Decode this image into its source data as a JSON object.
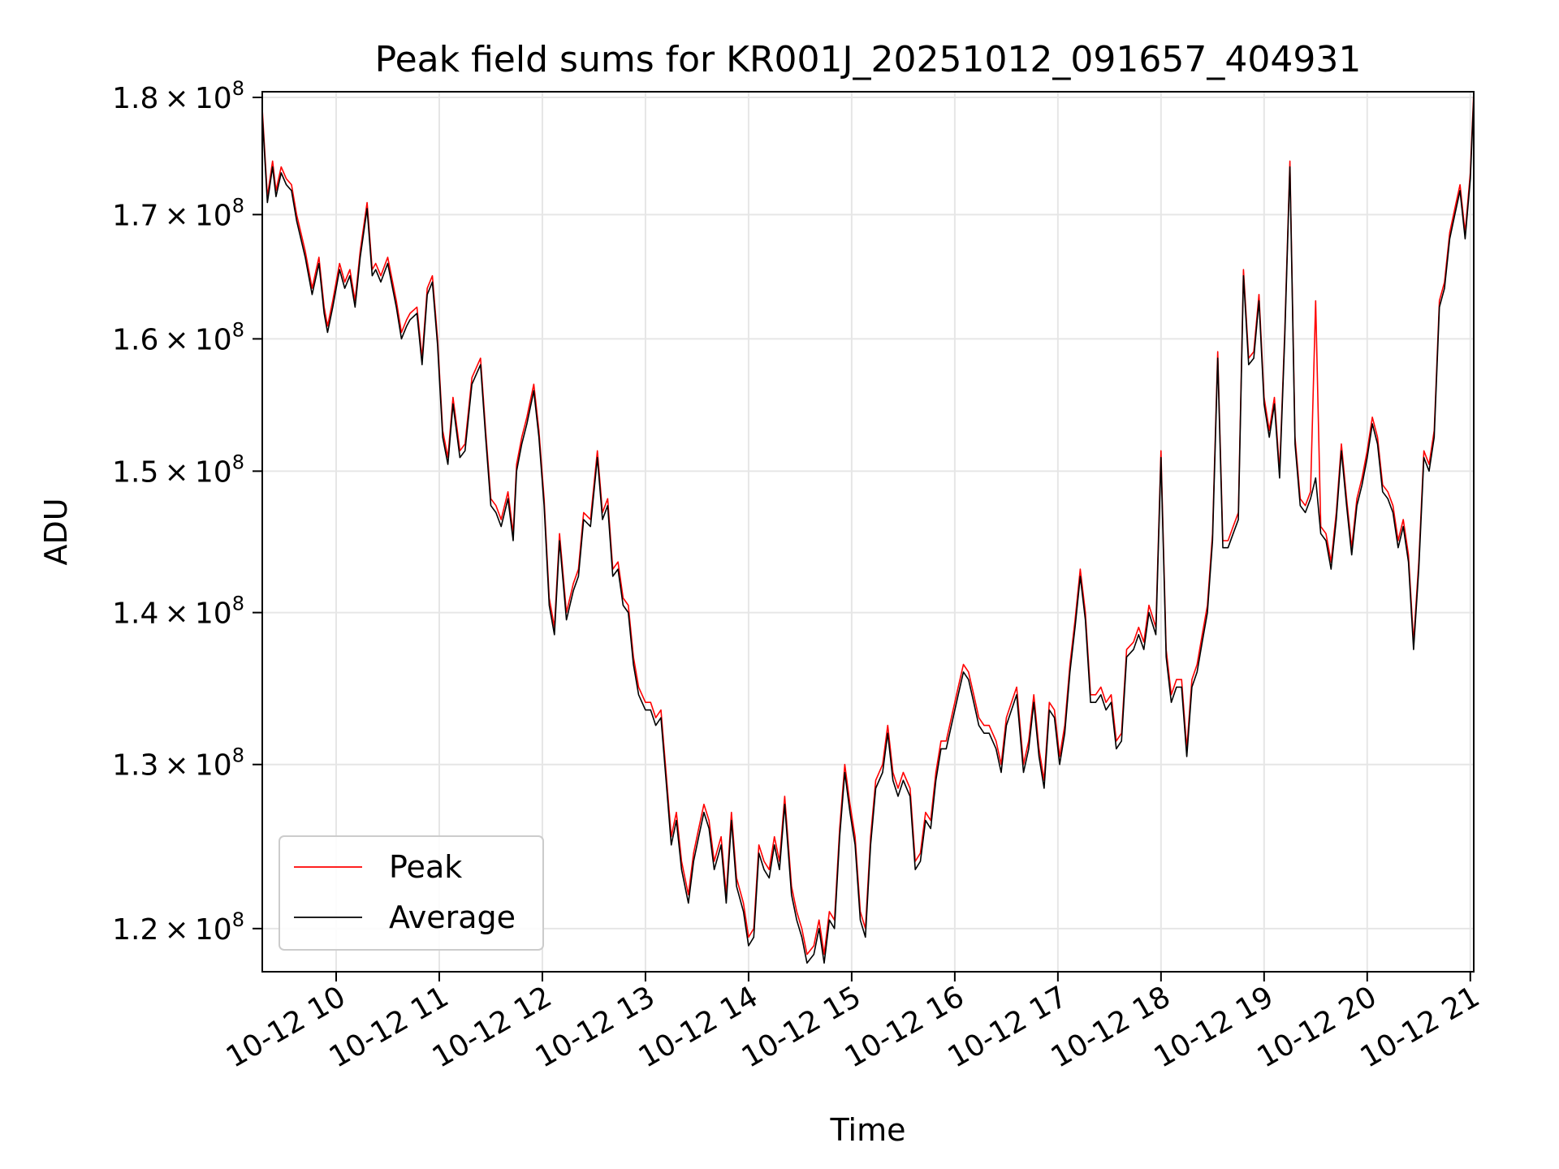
{
  "chart_data": {
    "type": "line",
    "title": "Peak field sums for KR001J_20251012_091657_404931",
    "xlabel": "Time",
    "ylabel": "ADU",
    "y_scale": "log",
    "xlim": [
      "2025-10-12 09:17",
      "2025-10-12 21:02"
    ],
    "ylim": [
      117500000,
      180500000
    ],
    "grid": true,
    "legend_position": "lower-left",
    "x_ticks": [
      {
        "value": "2025-10-12 10:00",
        "label": "10-12 10"
      },
      {
        "value": "2025-10-12 11:00",
        "label": "10-12 11"
      },
      {
        "value": "2025-10-12 12:00",
        "label": "10-12 12"
      },
      {
        "value": "2025-10-12 13:00",
        "label": "10-12 13"
      },
      {
        "value": "2025-10-12 14:00",
        "label": "10-12 14"
      },
      {
        "value": "2025-10-12 15:00",
        "label": "10-12 15"
      },
      {
        "value": "2025-10-12 16:00",
        "label": "10-12 16"
      },
      {
        "value": "2025-10-12 17:00",
        "label": "10-12 17"
      },
      {
        "value": "2025-10-12 18:00",
        "label": "10-12 18"
      },
      {
        "value": "2025-10-12 19:00",
        "label": "10-12 19"
      },
      {
        "value": "2025-10-12 20:00",
        "label": "10-12 20"
      },
      {
        "value": "2025-10-12 21:00",
        "label": "10-12 21"
      }
    ],
    "y_ticks": [
      {
        "value": 120000000,
        "mantissa": "1.2",
        "base": "10",
        "exponent": "8"
      },
      {
        "value": 130000000,
        "mantissa": "1.3",
        "base": "10",
        "exponent": "8"
      },
      {
        "value": 140000000,
        "mantissa": "1.4",
        "base": "10",
        "exponent": "8"
      },
      {
        "value": 150000000,
        "mantissa": "1.5",
        "base": "10",
        "exponent": "8"
      },
      {
        "value": 160000000,
        "mantissa": "1.6",
        "base": "10",
        "exponent": "8"
      },
      {
        "value": 170000000,
        "mantissa": "1.7",
        "base": "10",
        "exponent": "8"
      },
      {
        "value": 180000000,
        "mantissa": "1.8",
        "base": "10",
        "exponent": "8"
      }
    ],
    "x": [
      "2025-10-12 09:17",
      "2025-10-12 09:20",
      "2025-10-12 09:23",
      "2025-10-12 09:25",
      "2025-10-12 09:28",
      "2025-10-12 09:31",
      "2025-10-12 09:34",
      "2025-10-12 09:37",
      "2025-10-12 09:42",
      "2025-10-12 09:46",
      "2025-10-12 09:50",
      "2025-10-12 09:53",
      "2025-10-12 09:55",
      "2025-10-12 09:58",
      "2025-10-12 10:02",
      "2025-10-12 10:05",
      "2025-10-12 10:08",
      "2025-10-12 10:11",
      "2025-10-12 10:14",
      "2025-10-12 10:18",
      "2025-10-12 10:21",
      "2025-10-12 10:23",
      "2025-10-12 10:26",
      "2025-10-12 10:30",
      "2025-10-12 10:35",
      "2025-10-12 10:38",
      "2025-10-12 10:41",
      "2025-10-12 10:43",
      "2025-10-12 10:47",
      "2025-10-12 10:50",
      "2025-10-12 10:53",
      "2025-10-12 10:56",
      "2025-10-12 10:59",
      "2025-10-12 11:02",
      "2025-10-12 11:05",
      "2025-10-12 11:08",
      "2025-10-12 11:12",
      "2025-10-12 11:15",
      "2025-10-12 11:19",
      "2025-10-12 11:24",
      "2025-10-12 11:27",
      "2025-10-12 11:30",
      "2025-10-12 11:33",
      "2025-10-12 11:36",
      "2025-10-12 11:40",
      "2025-10-12 11:43",
      "2025-10-12 11:45",
      "2025-10-12 11:48",
      "2025-10-12 11:51",
      "2025-10-12 11:55",
      "2025-10-12 11:58",
      "2025-10-12 12:01",
      "2025-10-12 12:04",
      "2025-10-12 12:07",
      "2025-10-12 12:10",
      "2025-10-12 12:14",
      "2025-10-12 12:18",
      "2025-10-12 12:21",
      "2025-10-12 12:24",
      "2025-10-12 12:28",
      "2025-10-12 12:32",
      "2025-10-12 12:35",
      "2025-10-12 12:38",
      "2025-10-12 12:41",
      "2025-10-12 12:44",
      "2025-10-12 12:47",
      "2025-10-12 12:50",
      "2025-10-12 12:53",
      "2025-10-12 12:56",
      "2025-10-12 13:00",
      "2025-10-12 13:03",
      "2025-10-12 13:06",
      "2025-10-12 13:09",
      "2025-10-12 13:12",
      "2025-10-12 13:15",
      "2025-10-12 13:18",
      "2025-10-12 13:21",
      "2025-10-12 13:25",
      "2025-10-12 13:28",
      "2025-10-12 13:31",
      "2025-10-12 13:34",
      "2025-10-12 13:37",
      "2025-10-12 13:40",
      "2025-10-12 13:44",
      "2025-10-12 13:47",
      "2025-10-12 13:50",
      "2025-10-12 13:53",
      "2025-10-12 13:57",
      "2025-10-12 14:00",
      "2025-10-12 14:03",
      "2025-10-12 14:06",
      "2025-10-12 14:09",
      "2025-10-12 14:12",
      "2025-10-12 14:15",
      "2025-10-12 14:18",
      "2025-10-12 14:21",
      "2025-10-12 14:25",
      "2025-10-12 14:28",
      "2025-10-12 14:31",
      "2025-10-12 14:34",
      "2025-10-12 14:38",
      "2025-10-12 14:41",
      "2025-10-12 14:44",
      "2025-10-12 14:47",
      "2025-10-12 14:50",
      "2025-10-12 14:53",
      "2025-10-12 14:56",
      "2025-10-12 14:59",
      "2025-10-12 15:02",
      "2025-10-12 15:05",
      "2025-10-12 15:08",
      "2025-10-12 15:11",
      "2025-10-12 15:14",
      "2025-10-12 15:18",
      "2025-10-12 15:21",
      "2025-10-12 15:24",
      "2025-10-12 15:27",
      "2025-10-12 15:30",
      "2025-10-12 15:34",
      "2025-10-12 15:37",
      "2025-10-12 15:40",
      "2025-10-12 15:43",
      "2025-10-12 15:46",
      "2025-10-12 15:49",
      "2025-10-12 15:52",
      "2025-10-12 15:55",
      "2025-10-12 15:59",
      "2025-10-12 16:02",
      "2025-10-12 16:05",
      "2025-10-12 16:08",
      "2025-10-12 16:11",
      "2025-10-12 16:14",
      "2025-10-12 16:17",
      "2025-10-12 16:20",
      "2025-10-12 16:24",
      "2025-10-12 16:27",
      "2025-10-12 16:30",
      "2025-10-12 16:33",
      "2025-10-12 16:36",
      "2025-10-12 16:40",
      "2025-10-12 16:43",
      "2025-10-12 16:46",
      "2025-10-12 16:49",
      "2025-10-12 16:52",
      "2025-10-12 16:55",
      "2025-10-12 16:58",
      "2025-10-12 17:01",
      "2025-10-12 17:04",
      "2025-10-12 17:07",
      "2025-10-12 17:10",
      "2025-10-12 17:13",
      "2025-10-12 17:16",
      "2025-10-12 17:19",
      "2025-10-12 17:22",
      "2025-10-12 17:25",
      "2025-10-12 17:28",
      "2025-10-12 17:31",
      "2025-10-12 17:34",
      "2025-10-12 17:37",
      "2025-10-12 17:40",
      "2025-10-12 17:44",
      "2025-10-12 17:47",
      "2025-10-12 17:50",
      "2025-10-12 17:53",
      "2025-10-12 17:57",
      "2025-10-12 18:00",
      "2025-10-12 18:03",
      "2025-10-12 18:06",
      "2025-10-12 18:09",
      "2025-10-12 18:12",
      "2025-10-12 18:15",
      "2025-10-12 18:18",
      "2025-10-12 18:21",
      "2025-10-12 18:24",
      "2025-10-12 18:27",
      "2025-10-12 18:30",
      "2025-10-12 18:33",
      "2025-10-12 18:36",
      "2025-10-12 18:39",
      "2025-10-12 18:42",
      "2025-10-12 18:45",
      "2025-10-12 18:48",
      "2025-10-12 18:51",
      "2025-10-12 18:54",
      "2025-10-12 18:57",
      "2025-10-12 19:00",
      "2025-10-12 19:03",
      "2025-10-12 19:06",
      "2025-10-12 19:09",
      "2025-10-12 19:12",
      "2025-10-12 19:15",
      "2025-10-12 19:18",
      "2025-10-12 19:21",
      "2025-10-12 19:24",
      "2025-10-12 19:27",
      "2025-10-12 19:30",
      "2025-10-12 19:33",
      "2025-10-12 19:36",
      "2025-10-12 19:39",
      "2025-10-12 19:42",
      "2025-10-12 19:45",
      "2025-10-12 19:48",
      "2025-10-12 19:51",
      "2025-10-12 19:54",
      "2025-10-12 19:57",
      "2025-10-12 20:00",
      "2025-10-12 20:03",
      "2025-10-12 20:06",
      "2025-10-12 20:09",
      "2025-10-12 20:12",
      "2025-10-12 20:15",
      "2025-10-12 20:18",
      "2025-10-12 20:21",
      "2025-10-12 20:24",
      "2025-10-12 20:27",
      "2025-10-12 20:30",
      "2025-10-12 20:33",
      "2025-10-12 20:36",
      "2025-10-12 20:39",
      "2025-10-12 20:42",
      "2025-10-12 20:45",
      "2025-10-12 20:48",
      "2025-10-12 20:51",
      "2025-10-12 20:54",
      "2025-10-12 20:57",
      "2025-10-12 21:00",
      "2025-10-12 21:02"
    ],
    "series": [
      {
        "name": "Peak",
        "color": "#ff0000",
        "values": [
          179000000,
          171500000,
          174500000,
          172000000,
          174000000,
          173000000,
          172500000,
          170000000,
          167000000,
          164000000,
          166500000,
          162500000,
          161000000,
          163000000,
          166000000,
          164500000,
          165500000,
          163000000,
          167000000,
          171000000,
          165500000,
          166000000,
          165000000,
          166500000,
          163000000,
          160500000,
          161500000,
          162000000,
          162500000,
          158500000,
          164000000,
          165000000,
          160000000,
          153000000,
          151000000,
          155500000,
          151500000,
          152000000,
          157000000,
          158500000,
          153000000,
          148000000,
          147500000,
          146500000,
          148500000,
          145500000,
          150500000,
          152500000,
          154000000,
          156500000,
          153000000,
          148000000,
          141000000,
          139000000,
          145500000,
          140000000,
          142000000,
          143000000,
          147000000,
          146500000,
          151500000,
          147000000,
          148000000,
          143000000,
          143500000,
          141000000,
          140500000,
          137000000,
          135000000,
          134000000,
          134000000,
          133000000,
          133500000,
          129500000,
          125500000,
          127000000,
          124000000,
          122000000,
          124500000,
          126000000,
          127500000,
          126500000,
          124000000,
          125500000,
          122000000,
          127000000,
          123000000,
          121500000,
          119500000,
          120000000,
          125000000,
          124000000,
          123500000,
          125500000,
          124000000,
          128000000,
          122500000,
          121000000,
          120000000,
          118500000,
          119000000,
          120500000,
          118500000,
          121000000,
          120500000,
          126000000,
          130000000,
          127500000,
          125500000,
          121000000,
          120000000,
          125500000,
          129000000,
          130000000,
          132500000,
          129500000,
          128500000,
          129500000,
          128500000,
          124000000,
          124500000,
          127000000,
          126500000,
          129500000,
          131500000,
          131500000,
          133500000,
          135000000,
          136500000,
          136000000,
          134500000,
          133000000,
          132500000,
          132500000,
          131500000,
          130000000,
          133000000,
          134000000,
          135000000,
          130000000,
          131500000,
          134500000,
          131000000,
          129000000,
          134000000,
          133500000,
          130500000,
          132500000,
          136500000,
          139500000,
          143000000,
          140000000,
          134500000,
          134500000,
          135000000,
          134000000,
          134500000,
          131500000,
          132000000,
          137500000,
          138000000,
          139000000,
          138000000,
          140500000,
          139000000,
          151500000,
          137500000,
          134500000,
          135500000,
          135500000,
          131000000,
          135500000,
          136500000,
          138500000,
          140500000,
          145500000,
          159000000,
          145000000,
          145000000,
          146000000,
          147000000,
          165500000,
          158500000,
          159000000,
          163500000,
          155500000,
          153000000,
          155500000,
          150000000,
          160500000,
          174500000,
          152500000,
          148000000,
          147500000,
          148500000,
          163000000,
          146000000,
          145500000,
          143500000,
          147000000,
          152000000,
          148000000,
          144500000,
          148000000,
          149500000,
          151500000,
          154000000,
          152500000,
          149000000,
          148500000,
          147500000,
          145000000,
          146500000,
          144000000,
          138000000,
          143500000,
          151500000,
          150500000,
          153000000,
          163000000,
          164500000,
          168500000,
          170500000,
          172500000,
          168500000,
          173500000,
          180500000
        ]
      },
      {
        "name": "Average",
        "color": "#000000",
        "values": [
          178500000,
          171000000,
          174000000,
          171500000,
          173500000,
          172500000,
          172000000,
          169500000,
          166500000,
          163500000,
          166000000,
          162000000,
          160500000,
          162500000,
          165500000,
          164000000,
          165000000,
          162500000,
          166500000,
          170500000,
          165000000,
          165500000,
          164500000,
          166000000,
          162500000,
          160000000,
          161000000,
          161500000,
          162000000,
          158000000,
          163500000,
          164500000,
          159500000,
          152500000,
          150500000,
          155000000,
          151000000,
          151500000,
          156500000,
          158000000,
          152500000,
          147500000,
          147000000,
          146000000,
          148000000,
          145000000,
          150000000,
          152000000,
          153500000,
          156000000,
          152500000,
          147500000,
          140500000,
          138500000,
          145000000,
          139500000,
          141500000,
          142500000,
          146500000,
          146000000,
          151000000,
          146500000,
          147500000,
          142500000,
          143000000,
          140500000,
          140000000,
          136500000,
          134500000,
          133500000,
          133500000,
          132500000,
          133000000,
          129000000,
          125000000,
          126500000,
          123500000,
          121500000,
          124000000,
          125500000,
          127000000,
          126000000,
          123500000,
          125000000,
          121500000,
          126500000,
          122500000,
          121000000,
          119000000,
          119500000,
          124500000,
          123500000,
          123000000,
          125000000,
          123500000,
          127500000,
          122000000,
          120500000,
          119500000,
          118000000,
          118500000,
          120000000,
          118000000,
          120500000,
          120000000,
          125500000,
          129500000,
          127000000,
          125000000,
          120500000,
          119500000,
          125000000,
          128500000,
          129500000,
          132000000,
          129000000,
          128000000,
          129000000,
          128000000,
          123500000,
          124000000,
          126500000,
          126000000,
          129000000,
          131000000,
          131000000,
          133000000,
          134500000,
          136000000,
          135500000,
          134000000,
          132500000,
          132000000,
          132000000,
          131000000,
          129500000,
          132500000,
          133500000,
          134500000,
          129500000,
          131000000,
          134000000,
          130500000,
          128500000,
          133500000,
          133000000,
          130000000,
          132000000,
          136000000,
          139000000,
          142500000,
          139500000,
          134000000,
          134000000,
          134500000,
          133500000,
          134000000,
          131000000,
          131500000,
          137000000,
          137500000,
          138500000,
          137500000,
          140000000,
          138500000,
          151000000,
          137000000,
          134000000,
          135000000,
          135000000,
          130500000,
          135000000,
          136000000,
          138000000,
          140000000,
          145000000,
          158500000,
          144500000,
          144500000,
          145500000,
          146500000,
          165000000,
          158000000,
          158500000,
          163000000,
          155000000,
          152500000,
          155000000,
          149500000,
          160000000,
          174000000,
          152000000,
          147500000,
          147000000,
          148000000,
          149500000,
          145500000,
          145000000,
          143000000,
          146500000,
          151500000,
          147500000,
          144000000,
          147500000,
          149000000,
          151000000,
          153500000,
          152000000,
          148500000,
          148000000,
          147000000,
          144500000,
          146000000,
          143500000,
          137500000,
          143000000,
          151000000,
          150000000,
          152500000,
          162500000,
          164000000,
          168000000,
          170000000,
          172000000,
          168000000,
          173000000,
          180000000
        ]
      }
    ]
  }
}
